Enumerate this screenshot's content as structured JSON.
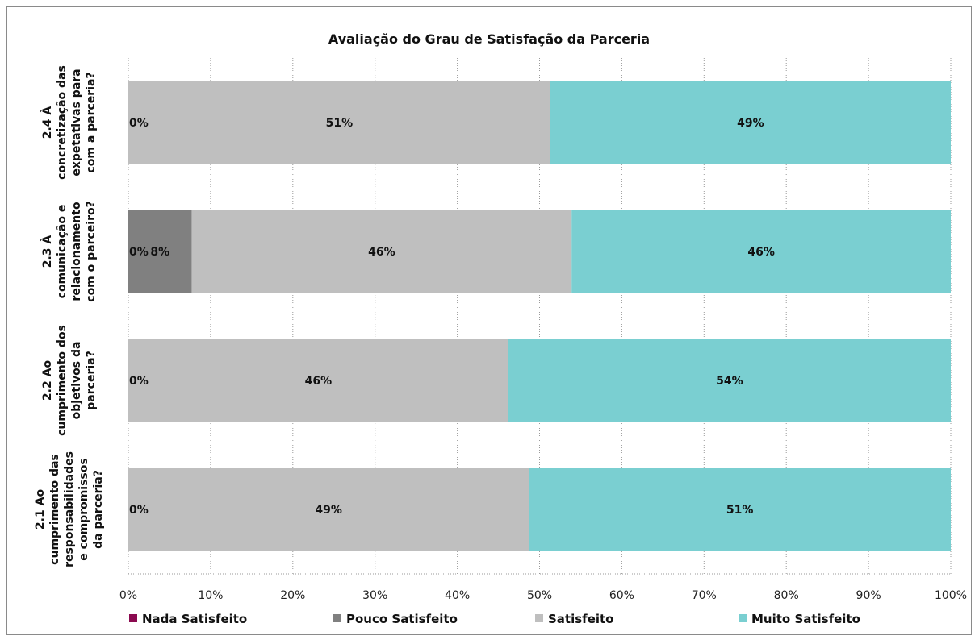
{
  "chart_data": {
    "type": "bar",
    "orientation": "horizontal",
    "stacked": "percent",
    "title": "Avaliação do Grau de Satisfação da Parceria",
    "xlim": [
      0,
      100
    ],
    "x_ticks": [
      "0%",
      "10%",
      "20%",
      "30%",
      "40%",
      "50%",
      "60%",
      "70%",
      "80%",
      "90%",
      "100%"
    ],
    "grid": "vertical dotted",
    "legend": "bottom",
    "categories": [
      [
        "2.1 Ao",
        "cumprimento das",
        "responsabilidades",
        "e compromissos",
        "da parceria?"
      ],
      [
        "2.2 Ao",
        "cumprimento dos",
        "objetivos da",
        "parceria?"
      ],
      [
        "2.3 À",
        "comunicação e",
        "relacionamento",
        "com o parceiro?"
      ],
      [
        "2.4 À",
        "concretização das",
        "expetativas para",
        "com a parceria?"
      ]
    ],
    "series": [
      {
        "name": "Nada Satisfeito",
        "color": "#8B0A50",
        "values": [
          0,
          0,
          0,
          0
        ],
        "labels": [
          "0%",
          "0%",
          "0%",
          "0%"
        ]
      },
      {
        "name": "Pouco Satisfeito",
        "color": "#808080",
        "values": [
          0,
          0,
          7.7,
          0
        ],
        "labels": [
          "",
          "",
          "8%",
          ""
        ]
      },
      {
        "name": "Satisfeito",
        "color": "#BFBFBF",
        "values": [
          48.7,
          46.2,
          46.2,
          51.3
        ],
        "labels": [
          "49%",
          "46%",
          "46%",
          "51%"
        ]
      },
      {
        "name": "Muito Satisfeito",
        "color": "#7ACFD1",
        "values": [
          51.3,
          53.8,
          46.1,
          48.7
        ],
        "labels": [
          "51%",
          "54%",
          "46%",
          "49%"
        ]
      }
    ]
  }
}
